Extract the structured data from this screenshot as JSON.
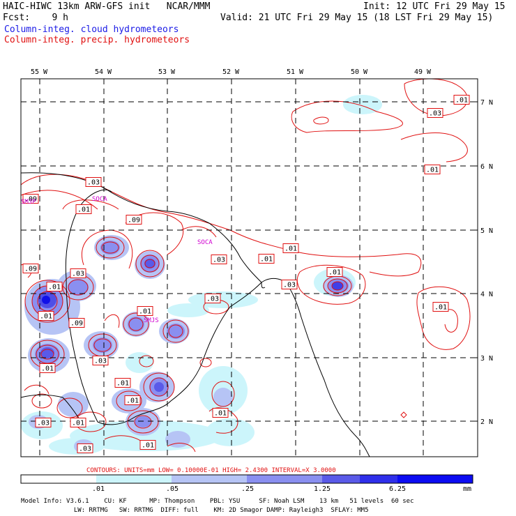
{
  "header": {
    "left1": "HAIC-HIWC 13km ARW-GFS init   NCAR/MMM",
    "left2": "Fcst:    9 h",
    "right1": "Init: 12 UTC Fri 29 May 15",
    "right2": "Valid: 21 UTC Fri 29 May 15 (18 LST Fri 29 May 15)",
    "legend_cloud": "Column-integ. cloud hydrometeors",
    "legend_precip": "Column-integ. precip. hydrometeors"
  },
  "axes": {
    "lon_labels": [
      "55 W",
      "54 W",
      "53 W",
      "52 W",
      "51 W",
      "50 W",
      "49 W"
    ],
    "lat_labels": [
      "7 N",
      "6 N",
      "5 N",
      "4 N",
      "3 N",
      "2 N"
    ]
  },
  "contour_labels": [
    ".01",
    ".03",
    ".01",
    ".03",
    ".09",
    ".09",
    ".01",
    ".09",
    ".03",
    ".01",
    ".03",
    ".01",
    ".01",
    ".03",
    ".01",
    ".01",
    ".03",
    ".01",
    ".01",
    ".09",
    ".03",
    ".01",
    ".01",
    ".01",
    ".03",
    ".01",
    ".01",
    ".03",
    ".01"
  ],
  "place_labels": [
    "SOCA",
    "SOCA",
    "SMJS",
    "SMJP"
  ],
  "contours_info": "CONTOURS:  UNITS=mm  LOW= 0.10000E-01  HIGH=  2.4300     INTERVAL=X  3.0000",
  "colorbar": {
    "ticks": [
      ".01",
      ".05",
      ".25",
      "1.25",
      "6.25"
    ],
    "unit": "mm",
    "colors": [
      "#ffffff",
      "#ccf5fb",
      "#b6c4f5",
      "#8a8ff0",
      "#5a5ae8",
      "#2f2fea",
      "#0c0cf2"
    ]
  },
  "model_info": {
    "line1": "Model Info: V3.6.1    CU: KF      MP: Thompson    PBL: YSU     SF: Noah LSM    13 km   51 levels  60 sec",
    "line2": "              LW: RRTMG   SW: RRTMG  DIFF: full    KM: 2D Smagor DAMP: Rayleigh3  SFLAY: MM5"
  }
}
